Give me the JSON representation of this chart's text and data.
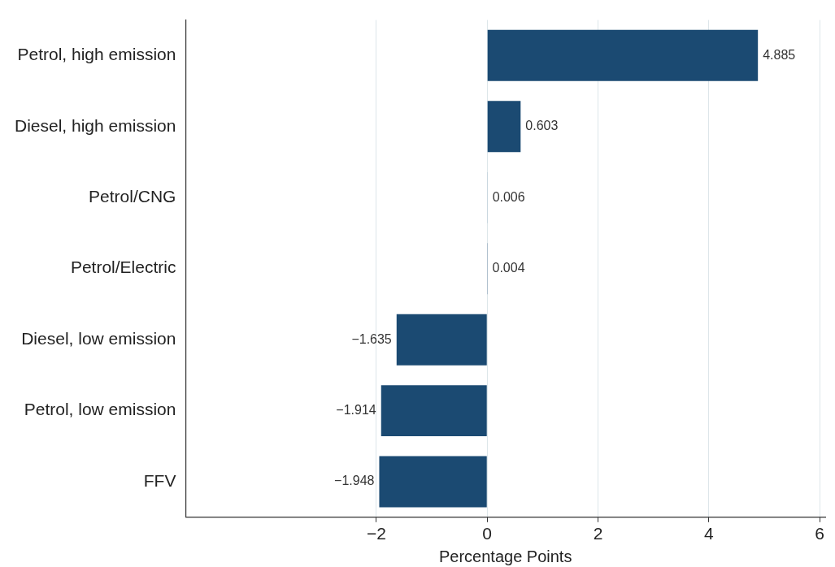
{
  "chart_data": {
    "type": "bar",
    "orientation": "horizontal",
    "xlabel": "Percentage Points",
    "categories": [
      "Petrol, high emission",
      "Diesel, high emission",
      "Petrol/CNG",
      "Petrol/Electric",
      "Diesel, low emission",
      "Petrol, low emission",
      "FFV"
    ],
    "values": [
      4.885,
      0.603,
      0.006,
      0.004,
      -1.635,
      -1.914,
      -1.948
    ],
    "value_labels": [
      "4.885",
      "0.603",
      "0.006",
      "0.004",
      "−1.635",
      "−1.914",
      "−1.948"
    ],
    "color": "#1b4a72",
    "xlim": [
      -5.44,
      6.1
    ],
    "xticks": [
      {
        "value": -2,
        "label": "−2"
      },
      0,
      2,
      4,
      6
    ],
    "grid": "x",
    "legend": false
  }
}
